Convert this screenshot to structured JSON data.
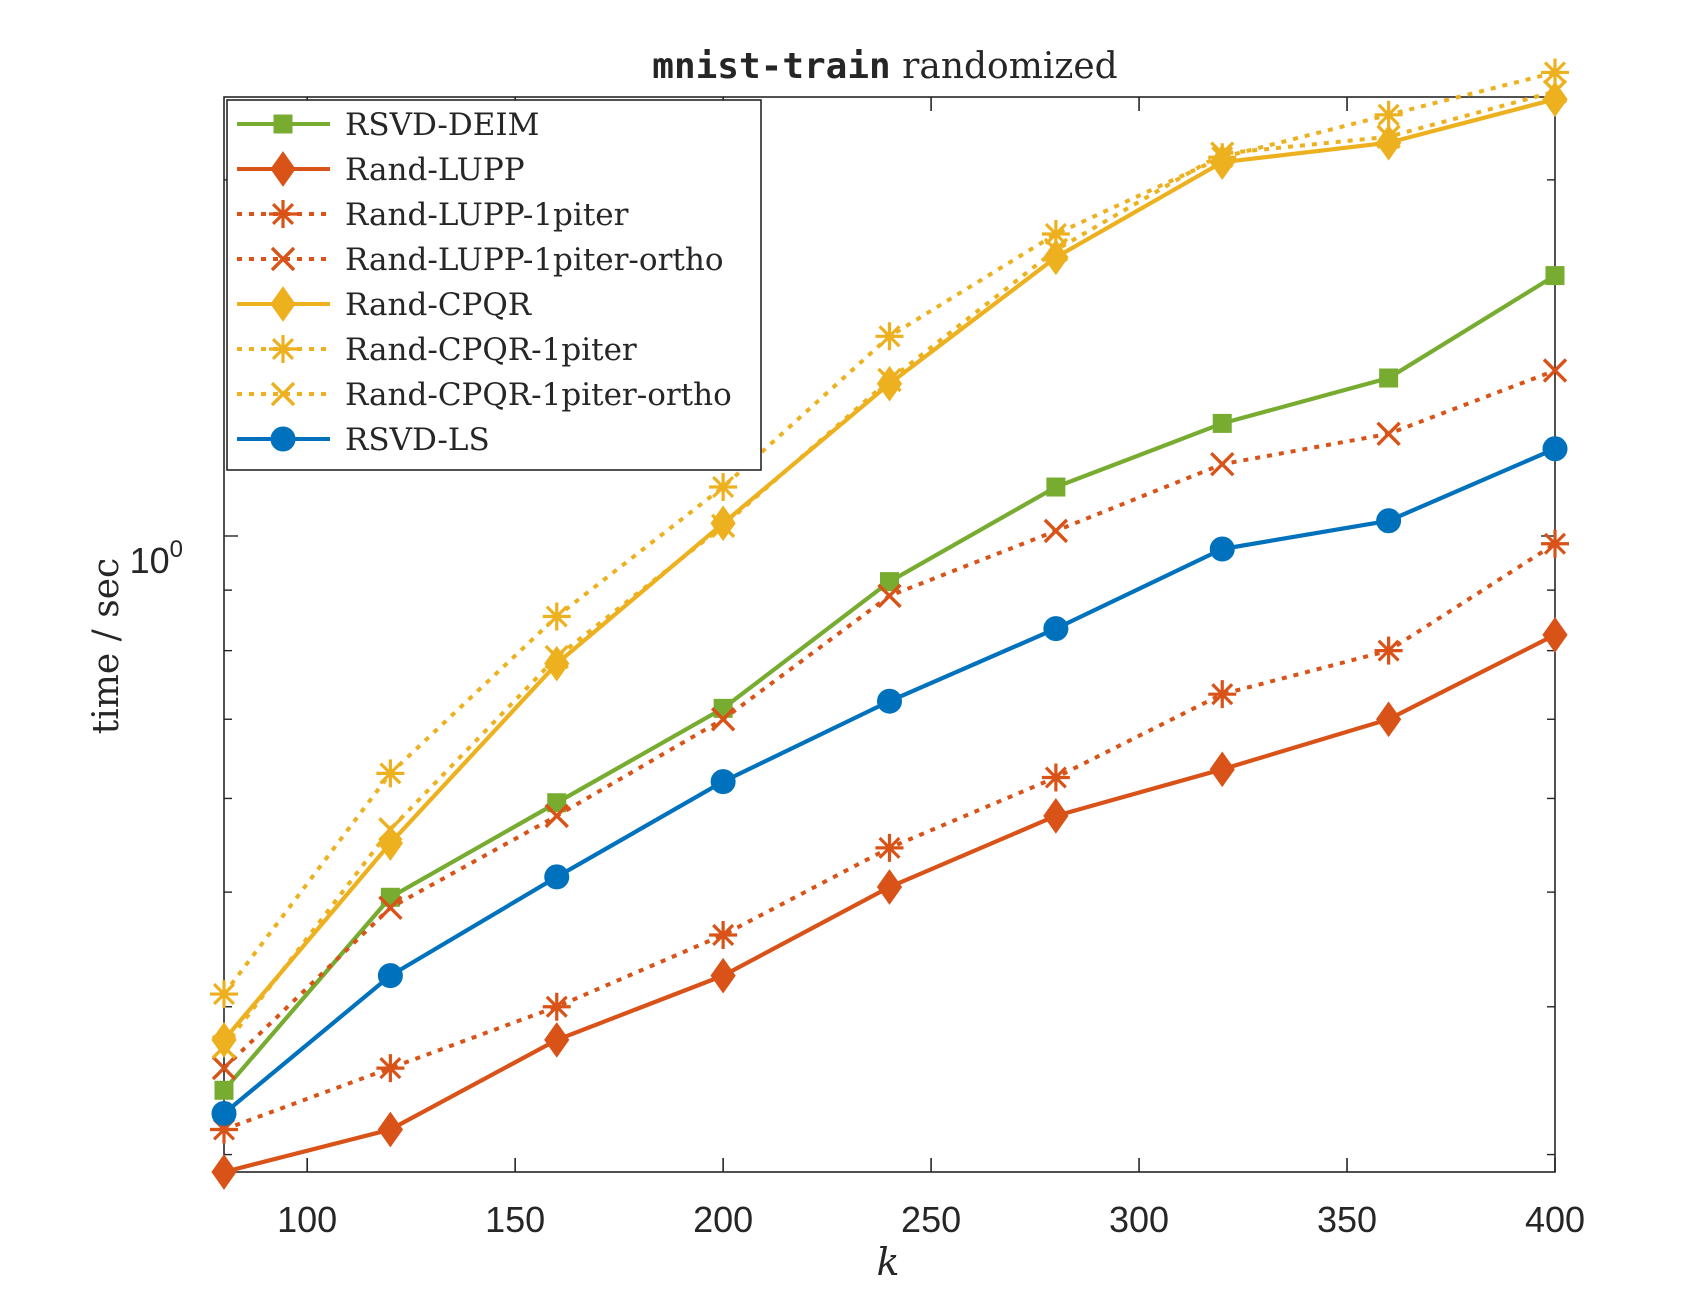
{
  "chart_data": {
    "type": "line",
    "title_code": "mnist-train",
    "title_rest": " randomized",
    "xlabel": "k",
    "ylabel": "time / sec",
    "yscale": "log",
    "xlim": [
      80,
      400
    ],
    "ylim": [
      0.29,
      2.35
    ],
    "xticks": [
      100,
      150,
      200,
      250,
      300,
      350,
      400
    ],
    "ytick_label_base": "10",
    "ytick_label_exp": "0",
    "legend_position": "top-left",
    "grid": false,
    "x": [
      80,
      120,
      160,
      200,
      240,
      280,
      320,
      360,
      400
    ],
    "series": [
      {
        "name": "RSVD-DEIM",
        "color": "#77ac30",
        "marker": "square",
        "dash": "solid",
        "values": [
          0.34,
          0.495,
          0.595,
          0.715,
          0.915,
          1.1,
          1.245,
          1.36,
          1.66
        ]
      },
      {
        "name": "Rand-LUPP",
        "color": "#d95319",
        "marker": "diamond",
        "dash": "solid",
        "values": [
          0.29,
          0.315,
          0.375,
          0.425,
          0.505,
          0.58,
          0.635,
          0.7,
          0.825
        ]
      },
      {
        "name": "Rand-LUPP-1piter",
        "color": "#d95319",
        "marker": "asterisk",
        "dash": "dotted",
        "values": [
          0.315,
          0.355,
          0.4,
          0.46,
          0.545,
          0.625,
          0.735,
          0.8,
          0.985
        ]
      },
      {
        "name": "Rand-LUPP-1piter-ortho",
        "color": "#d95319",
        "marker": "x",
        "dash": "dotted",
        "values": [
          0.355,
          0.485,
          0.58,
          0.7,
          0.89,
          1.01,
          1.15,
          1.22,
          1.38
        ]
      },
      {
        "name": "Rand-CPQR",
        "color": "#edb120",
        "marker": "diamond",
        "dash": "solid",
        "values": [
          0.375,
          0.55,
          0.78,
          1.025,
          1.345,
          1.72,
          2.07,
          2.15,
          2.34
        ]
      },
      {
        "name": "Rand-CPQR-1piter",
        "color": "#edb120",
        "marker": "asterisk",
        "dash": "dotted",
        "values": [
          0.41,
          0.63,
          0.855,
          1.1,
          1.475,
          1.8,
          2.09,
          2.27,
          2.465
        ]
      },
      {
        "name": "Rand-CPQR-1piter-ortho",
        "color": "#edb120",
        "marker": "x",
        "dash": "dotted",
        "values": [
          0.37,
          0.565,
          0.79,
          1.02,
          1.355,
          1.745,
          2.105,
          2.175,
          2.375
        ]
      },
      {
        "name": "RSVD-LS",
        "color": "#0072bd",
        "marker": "circle",
        "dash": "solid",
        "values": [
          0.325,
          0.425,
          0.515,
          0.62,
          0.725,
          0.835,
          0.975,
          1.03,
          1.185
        ]
      }
    ]
  }
}
